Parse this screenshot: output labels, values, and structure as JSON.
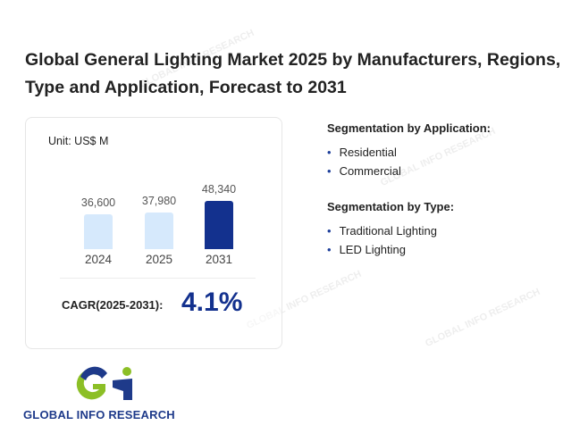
{
  "title": "Global General Lighting Market 2025 by Manufacturers, Regions, Type and Application, Forecast to 2031",
  "chart_data": {
    "type": "bar",
    "unit": "Unit: US$ M",
    "categories": [
      "2024",
      "2025",
      "2031"
    ],
    "values": [
      36600,
      37980,
      48340
    ],
    "labels": [
      "36,600",
      "37,980",
      "48,340"
    ],
    "colors": [
      "#d6e9fc",
      "#d6e9fc",
      "#13318e"
    ]
  },
  "cagr": {
    "label": "CAGR(2025-2031):",
    "value": "4.1%"
  },
  "segments": {
    "application": {
      "heading": "Segmentation by Application:",
      "items": [
        "Residential",
        "Commercial"
      ]
    },
    "type": {
      "heading": "Segmentation by Type:",
      "items": [
        "Traditional Lighting",
        "LED Lighting"
      ]
    }
  },
  "logo": {
    "text": "GLOBAL INFO RESEARCH"
  },
  "watermark": "GLOBAL INFO RESEARCH"
}
